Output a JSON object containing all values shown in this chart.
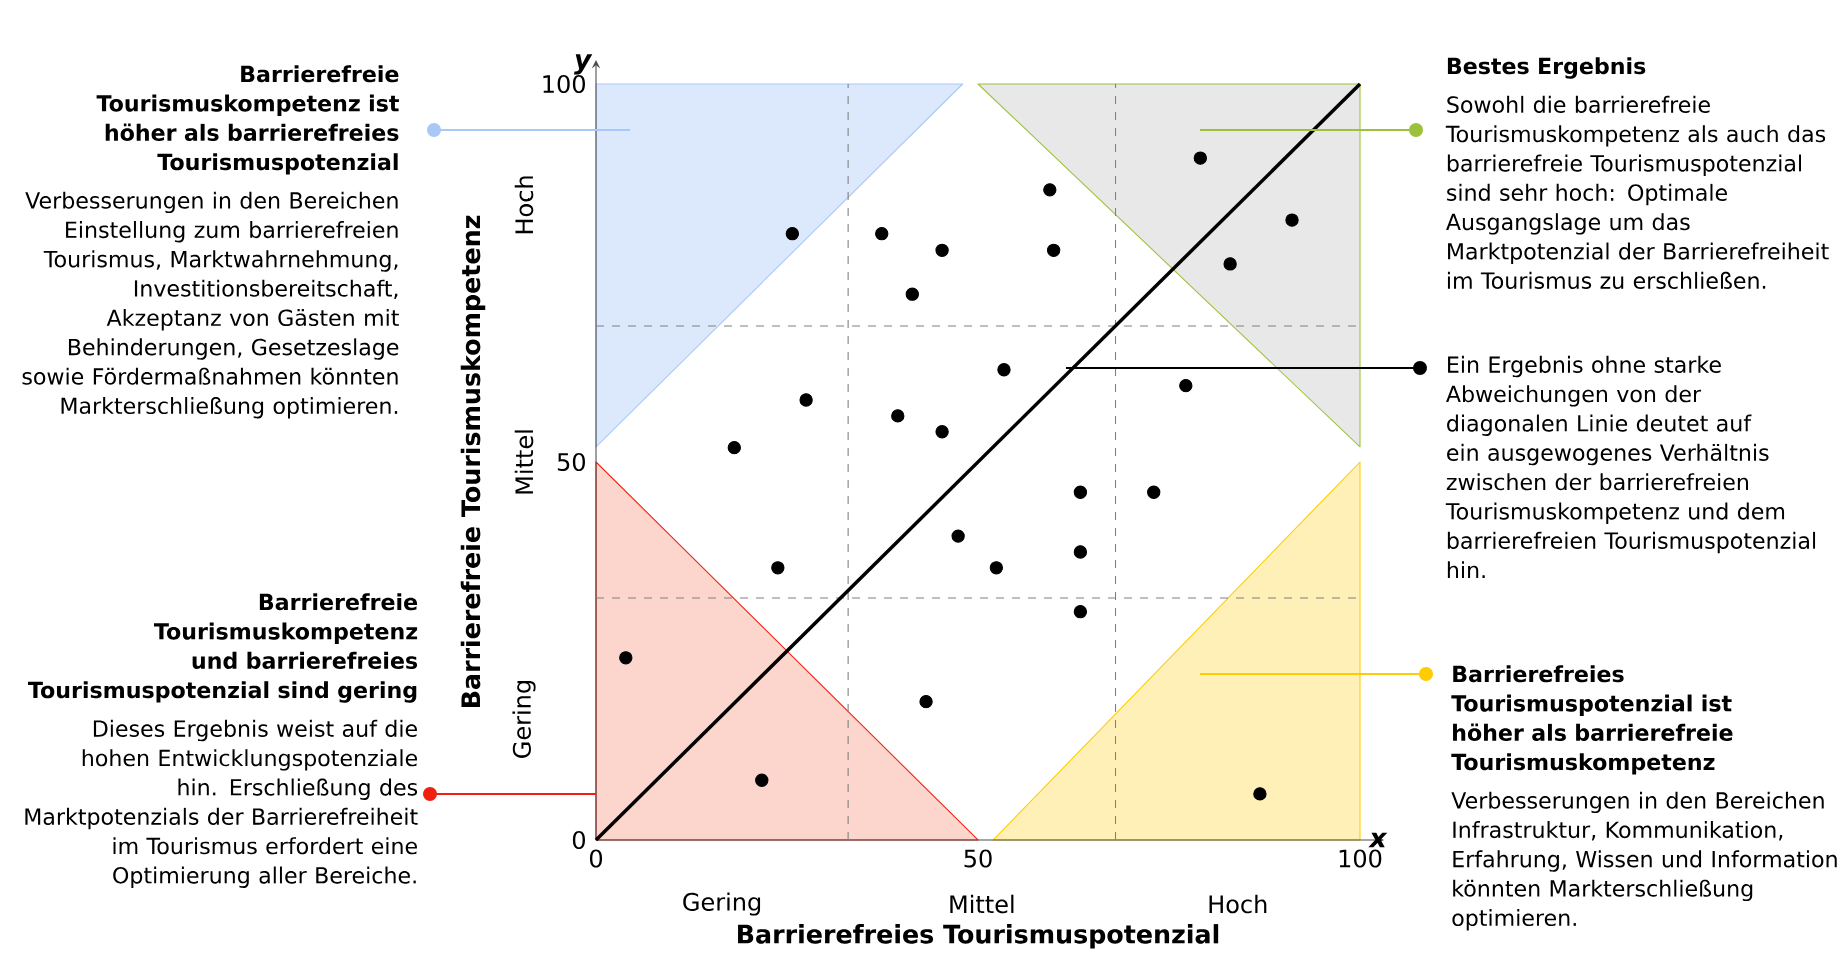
{
  "chart_data": {
    "type": "scatter",
    "xlabel": "Barrierefreies Tourismuspotenzial",
    "ylabel": "Barrierefreie Tourismuskompetenz",
    "marker": "circle",
    "xlim": [
      0,
      100
    ],
    "ylim": [
      0,
      100
    ],
    "xticks": [
      0,
      50,
      100
    ],
    "yticks": [
      0,
      50,
      100
    ],
    "series": [
      {
        "color": "#000000",
        "x": [
          3.9,
          18.1,
          23.8,
          25.7,
          27.5,
          21.7,
          37.4,
          39.5,
          41.4,
          45.3,
          45.3,
          43.2,
          47.4,
          52.4,
          53.4,
          59.4,
          59.9,
          63.4,
          63.4,
          63.4,
          73.0,
          77.2,
          79.1,
          83.0,
          91.1,
          86.9
        ],
        "values": [
          24.1,
          51.9,
          36.0,
          80.2,
          58.2,
          7.9,
          80.2,
          56.1,
          72.2,
          78.0,
          54.0,
          18.3,
          40.2,
          36.0,
          62.2,
          86.0,
          78.0,
          46.0,
          38.1,
          30.2,
          46.0,
          60.1,
          90.2,
          76.2,
          82.0,
          6.1
        ]
      },
      {
        "type": "line",
        "marker": "none",
        "color": "#000000",
        "x": [
          0,
          100
        ],
        "values": [
          0,
          100
        ]
      }
    ],
    "ref_lines": [
      {
        "axis": "x",
        "value": 33,
        "color": "#808080",
        "line_style": "dashed"
      },
      {
        "axis": "x",
        "value": 68,
        "color": "#808080",
        "line_style": "dashed"
      },
      {
        "axis": "y",
        "value": 32,
        "color": "#808080",
        "line_style": "dashed"
      },
      {
        "axis": "y",
        "value": 68,
        "color": "#808080",
        "line_style": "dashed"
      }
    ],
    "annotations": [
      "x",
      "y",
      "Gering",
      "Mittel",
      "Hoch",
      "Gering",
      "Mittel",
      "Hoch",
      "Barrierefreie Tourismuskompetenz ist höher als barrierefreies Tourismuspotenzial",
      "Verbesserungen in den Bereichen Einstellung zum barrierefreien Tourismus, Marktwahrnehmung, Investitionsbereitschaft, Akzeptanz von Gästen mit Behinderungen, Gesetzeslage sowie Fördermaßnahmen könnten Markterschließung optimieren.",
      "Barrierefreie Tourismuskompetenz und barrierefreies Tourismuspotenzial sind gering",
      "Dieses Ergebnis weist auf die hohen Entwicklungspotenziale hin. Erschließung des Marktpotenzials der Barrierefreiheit im Tourismus erfordert eine Optimierung aller Bereiche.",
      "Bestes Ergebnis",
      "Sowohl die barrierefreie Tourismuskompetenz als auch das barrierefreie Tourismuspotenzial sind sehr hoch: Optimale Ausgangslage um das Marktpotenzial der Barrierefreiheit im Tourismus zu erschließen.",
      "Ein Ergebnis ohne starke Abweichungen von der diagonalen Linie deutet auf ein ausgewogenes Verhältnis zwischen der barrierefreien Tourismuskompetenz und dem barrierefreien Tourismuspotenzial hin.",
      "Barrierefreies Tourismuspotenzial ist höher als barrierefreie Tourismuskompetenz",
      "Verbesserungen in den Bereichen Infrastruktur, Kommunikation, Erfahrung, Wissen und Information könnten Markterschließung optimieren."
    ]
  }
}
